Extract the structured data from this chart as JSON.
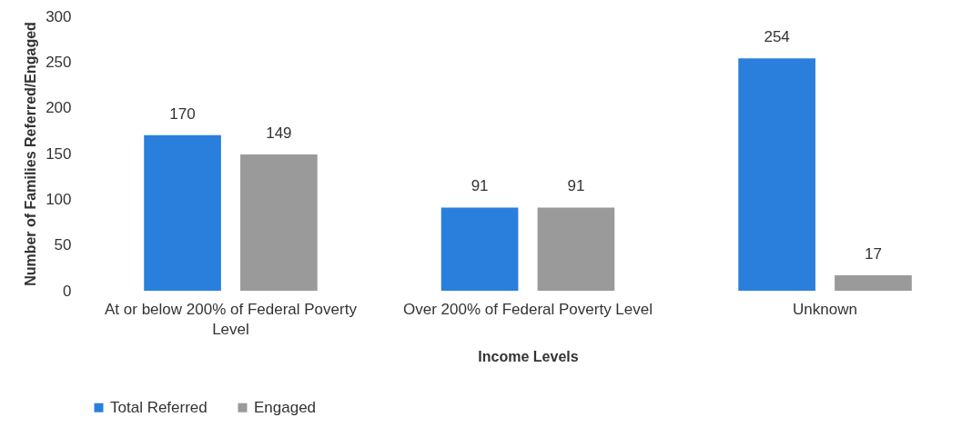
{
  "chart_data": {
    "type": "bar",
    "xlabel": "Income Levels",
    "ylabel": "Number of Families Referred/Engaged",
    "categories": [
      "At or below 200% of Federal Poverty Level",
      "Over 200% of Federal Poverty Level",
      "Unknown"
    ],
    "series": [
      {
        "name": "Total Referred",
        "color": "#2a7fdc",
        "values": [
          170,
          91,
          254
        ]
      },
      {
        "name": "Engaged",
        "color": "#9a9a9a",
        "values": [
          149,
          91,
          17
        ]
      }
    ],
    "ylim": [
      0,
      300
    ],
    "yticks": [
      0,
      50,
      100,
      150,
      200,
      250,
      300
    ],
    "grid": false,
    "legend": "bottom",
    "data_labels": true
  }
}
